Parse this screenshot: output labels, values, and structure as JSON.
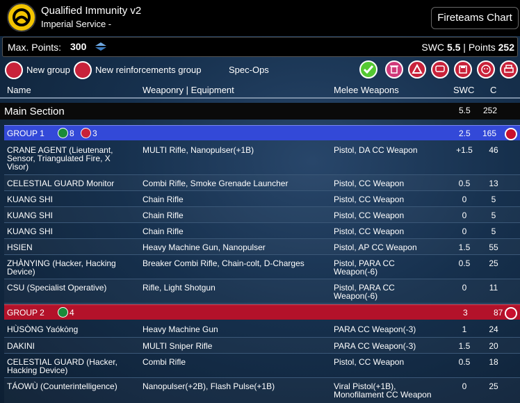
{
  "header": {
    "title": "Qualified Immunity v2",
    "subtitle": "Imperial Service -",
    "fireteams_button": "Fireteams Chart"
  },
  "points_bar": {
    "max_points_label": "Max. Points:",
    "max_points_value": "300",
    "swc_label": "SWC",
    "swc_value": "5.5",
    "separator": "|",
    "points_label": "Points",
    "points_value": "252"
  },
  "toolbar": {
    "new_group": "New group",
    "new_reinforcements_group": "New reinforcements group",
    "spec_ops": "Spec-Ops",
    "icons": [
      "check-icon",
      "trash-icon",
      "logo-icon",
      "chat-icon",
      "save-icon",
      "face-icon",
      "print-icon"
    ],
    "icon_colors": {
      "check": "#54c832",
      "trash": "#d03a7a",
      "logo": "#c8223a",
      "chat": "#c8223a",
      "save": "#c8223a",
      "face": "#c8223a",
      "print": "#c8223a"
    }
  },
  "columns": {
    "name": "Name",
    "weaponry": "Weaponry | Equipment",
    "melee": "Melee Weapons",
    "swc": "SWC",
    "c": "C"
  },
  "main_section": {
    "title": "Main Section",
    "swc": "5.5",
    "c": "252"
  },
  "groups": [
    {
      "name": "GROUP 1",
      "regular_count": "8",
      "irregular_count": "3",
      "swc": "2.5",
      "c": "165",
      "color": "#3349d8",
      "units": [
        {
          "name": "CRANE AGENT (Lieutenant, Sensor, Triangulated Fire, X Visor)",
          "weapons": "MULTI Rifle, Nanopulser(+1B)",
          "melee": "Pistol, DA CC Weapon",
          "swc": "+1.5",
          "c": "46"
        },
        {
          "name": "CELESTIAL GUARD Monitor",
          "weapons": "Combi Rifle, Smoke Grenade Launcher",
          "melee": "Pistol, CC Weapon",
          "swc": "0.5",
          "c": "13"
        },
        {
          "name": "KUANG SHI",
          "weapons": "Chain Rifle",
          "melee": "Pistol, CC Weapon",
          "swc": "0",
          "c": "5"
        },
        {
          "name": "KUANG SHI",
          "weapons": "Chain Rifle",
          "melee": "Pistol, CC Weapon",
          "swc": "0",
          "c": "5"
        },
        {
          "name": "KUANG SHI",
          "weapons": "Chain Rifle",
          "melee": "Pistol, CC Weapon",
          "swc": "0",
          "c": "5"
        },
        {
          "name": "HSIEN",
          "weapons": "Heavy Machine Gun, Nanopulser",
          "melee": "Pistol, AP CC Weapon",
          "swc": "1.5",
          "c": "55"
        },
        {
          "name": "ZHÀNYING (Hacker, Hacking Device)",
          "weapons": "Breaker Combi Rifle, Chain-colt, D-Charges",
          "melee": "Pistol, PARA CC Weapon(-6)",
          "swc": "0.5",
          "c": "25"
        },
        {
          "name": "CSU (Specialist Operative)",
          "weapons": "Rifle, Light Shotgun",
          "melee": "Pistol, PARA CC Weapon(-6)",
          "swc": "0",
          "c": "11"
        }
      ]
    },
    {
      "name": "GROUP 2",
      "regular_count": "4",
      "swc": "3",
      "c": "87",
      "color": "#b3122a",
      "units": [
        {
          "name": "HÙSÒNG Yaókòng",
          "weapons": "Heavy Machine Gun",
          "melee": "PARA CC Weapon(-3)",
          "swc": "1",
          "c": "24"
        },
        {
          "name": "DAKINI",
          "weapons": "MULTI Sniper Rifle",
          "melee": "PARA CC Weapon(-3)",
          "swc": "1.5",
          "c": "20"
        },
        {
          "name": "CELESTIAL GUARD (Hacker, Hacking Device)",
          "weapons": "Combi Rifle",
          "melee": "Pistol, CC Weapon",
          "swc": "0.5",
          "c": "18"
        },
        {
          "name": "TÁOWÙ (Counterintelligence)",
          "weapons": "Nanopulser(+2B), Flash Pulse(+1B)",
          "melee": "Viral Pistol(+1B), Monofilament CC Weapon",
          "swc": "0",
          "c": "25"
        }
      ]
    }
  ]
}
